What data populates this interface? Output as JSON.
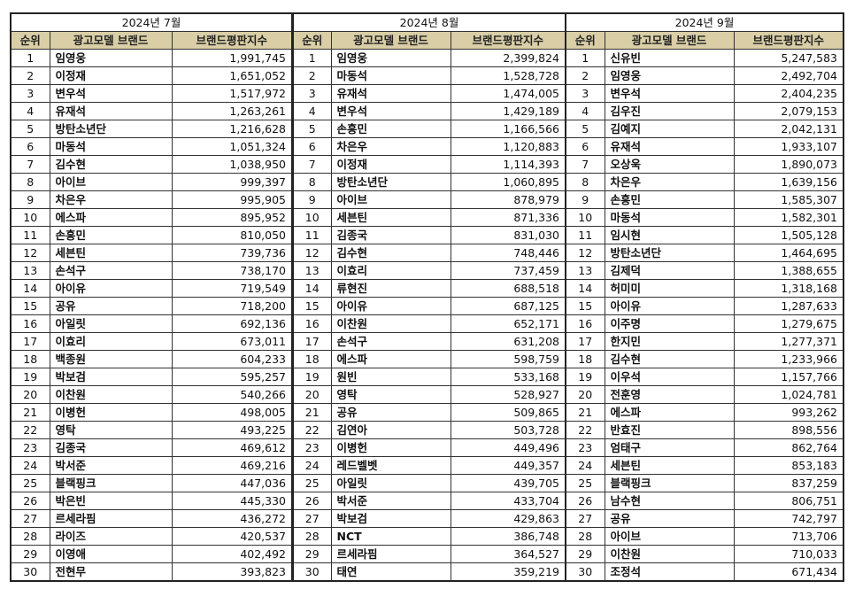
{
  "colors": {
    "header_bg": "#d9cea6",
    "border": "#333333"
  },
  "headers": {
    "rank": "순위",
    "name": "광고모델 브랜드",
    "score": "브랜드평판지수"
  },
  "months": [
    {
      "title": "2024년 7월",
      "rows": [
        [
          "1",
          "임영웅",
          "1,991,745"
        ],
        [
          "2",
          "이정재",
          "1,651,052"
        ],
        [
          "3",
          "변우석",
          "1,517,972"
        ],
        [
          "4",
          "유재석",
          "1,263,261"
        ],
        [
          "5",
          "방탄소년단",
          "1,216,628"
        ],
        [
          "6",
          "마동석",
          "1,051,324"
        ],
        [
          "7",
          "김수현",
          "1,038,950"
        ],
        [
          "8",
          "아이브",
          "999,397"
        ],
        [
          "9",
          "차은우",
          "995,905"
        ],
        [
          "10",
          "에스파",
          "895,952"
        ],
        [
          "11",
          "손흥민",
          "810,050"
        ],
        [
          "12",
          "세븐틴",
          "739,736"
        ],
        [
          "13",
          "손석구",
          "738,170"
        ],
        [
          "14",
          "아이유",
          "719,549"
        ],
        [
          "15",
          "공유",
          "718,200"
        ],
        [
          "16",
          "아일릿",
          "692,136"
        ],
        [
          "17",
          "이효리",
          "673,011"
        ],
        [
          "18",
          "백종원",
          "604,233"
        ],
        [
          "19",
          "박보검",
          "595,257"
        ],
        [
          "20",
          "이찬원",
          "540,266"
        ],
        [
          "21",
          "이병헌",
          "498,005"
        ],
        [
          "22",
          "영탁",
          "493,225"
        ],
        [
          "23",
          "김종국",
          "469,612"
        ],
        [
          "24",
          "박서준",
          "469,216"
        ],
        [
          "25",
          "블랙핑크",
          "447,036"
        ],
        [
          "26",
          "박은빈",
          "445,330"
        ],
        [
          "27",
          "르세라핌",
          "436,272"
        ],
        [
          "28",
          "라이즈",
          "420,537"
        ],
        [
          "29",
          "이영애",
          "402,492"
        ],
        [
          "30",
          "전현무",
          "393,823"
        ]
      ]
    },
    {
      "title": "2024년 8월",
      "rows": [
        [
          "1",
          "임영웅",
          "2,399,824"
        ],
        [
          "2",
          "마동석",
          "1,528,728"
        ],
        [
          "3",
          "유재석",
          "1,474,005"
        ],
        [
          "4",
          "변우석",
          "1,429,189"
        ],
        [
          "5",
          "손흥민",
          "1,166,566"
        ],
        [
          "6",
          "차은우",
          "1,120,883"
        ],
        [
          "7",
          "이정재",
          "1,114,393"
        ],
        [
          "8",
          "방탄소년단",
          "1,060,895"
        ],
        [
          "9",
          "아이브",
          "878,979"
        ],
        [
          "10",
          "세븐틴",
          "871,336"
        ],
        [
          "11",
          "김종국",
          "831,030"
        ],
        [
          "12",
          "김수현",
          "748,446"
        ],
        [
          "13",
          "이효리",
          "737,459"
        ],
        [
          "14",
          "류현진",
          "688,518"
        ],
        [
          "15",
          "아이유",
          "687,125"
        ],
        [
          "16",
          "이찬원",
          "652,171"
        ],
        [
          "17",
          "손석구",
          "631,208"
        ],
        [
          "18",
          "에스파",
          "598,759"
        ],
        [
          "19",
          "원빈",
          "533,168"
        ],
        [
          "20",
          "영탁",
          "528,927"
        ],
        [
          "21",
          "공유",
          "509,865"
        ],
        [
          "22",
          "김연아",
          "503,728"
        ],
        [
          "23",
          "이병헌",
          "449,496"
        ],
        [
          "24",
          "레드벨벳",
          "449,357"
        ],
        [
          "25",
          "아일릿",
          "439,705"
        ],
        [
          "26",
          "박서준",
          "433,704"
        ],
        [
          "27",
          "박보검",
          "429,863"
        ],
        [
          "28",
          "NCT",
          "386,748"
        ],
        [
          "29",
          "르세라핌",
          "364,527"
        ],
        [
          "30",
          "태연",
          "359,219"
        ]
      ]
    },
    {
      "title": "2024년 9월",
      "rows": [
        [
          "1",
          "신유빈",
          "5,247,583"
        ],
        [
          "2",
          "임영웅",
          "2,492,704"
        ],
        [
          "3",
          "변우석",
          "2,404,235"
        ],
        [
          "4",
          "김우진",
          "2,079,153"
        ],
        [
          "5",
          "김예지",
          "2,042,131"
        ],
        [
          "6",
          "유재석",
          "1,933,107"
        ],
        [
          "7",
          "오상욱",
          "1,890,073"
        ],
        [
          "8",
          "차은우",
          "1,639,156"
        ],
        [
          "9",
          "손흥민",
          "1,585,307"
        ],
        [
          "10",
          "마동석",
          "1,582,301"
        ],
        [
          "11",
          "임시현",
          "1,505,128"
        ],
        [
          "12",
          "방탄소년단",
          "1,464,695"
        ],
        [
          "13",
          "김제덕",
          "1,388,655"
        ],
        [
          "14",
          "허미미",
          "1,318,168"
        ],
        [
          "15",
          "아이유",
          "1,287,633"
        ],
        [
          "16",
          "이주명",
          "1,279,675"
        ],
        [
          "17",
          "한지민",
          "1,277,371"
        ],
        [
          "18",
          "김수현",
          "1,233,966"
        ],
        [
          "19",
          "이우석",
          "1,157,766"
        ],
        [
          "20",
          "전훈영",
          "1,024,781"
        ],
        [
          "21",
          "에스파",
          "993,262"
        ],
        [
          "22",
          "반효진",
          "898,556"
        ],
        [
          "23",
          "엄태구",
          "862,764"
        ],
        [
          "24",
          "세븐틴",
          "853,183"
        ],
        [
          "25",
          "블랙핑크",
          "837,259"
        ],
        [
          "26",
          "남수현",
          "806,751"
        ],
        [
          "27",
          "공유",
          "742,797"
        ],
        [
          "28",
          "아이브",
          "713,706"
        ],
        [
          "29",
          "이찬원",
          "710,033"
        ],
        [
          "30",
          "조정석",
          "671,434"
        ]
      ]
    }
  ]
}
